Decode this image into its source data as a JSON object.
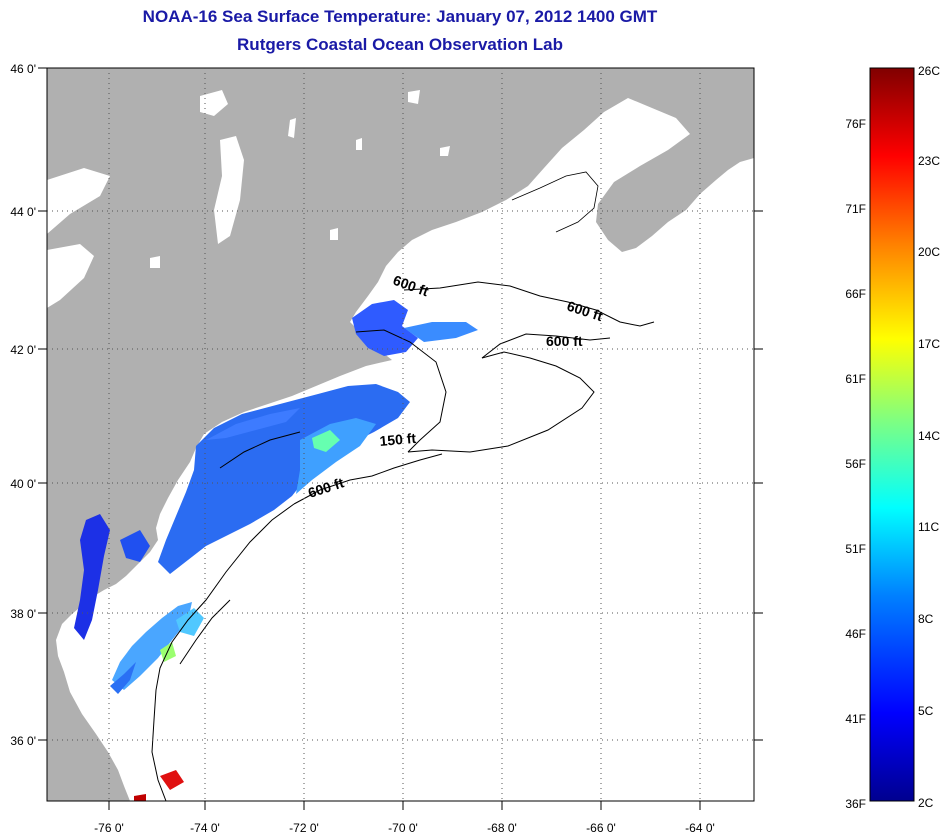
{
  "title": "NOAA-16 Sea Surface Temperature:  January 07, 2012 1400 GMT",
  "subtitle": "Rutgers Coastal Ocean Observation Lab",
  "map": {
    "lon_range": [
      -77,
      -63
    ],
    "lat_range": [
      35,
      46
    ],
    "lon_ticks": [
      "-76 0'",
      "-74 0'",
      "-72 0'",
      "-70 0'",
      "-68 0'",
      "-66 0'",
      "-64 0'"
    ],
    "lat_ticks": [
      "46 0'",
      "44 0'",
      "42 0'",
      "40 0'",
      "38 0'",
      "36 0'"
    ],
    "land_color": "#b0b0b0",
    "grid": "dotted",
    "contour_labels": [
      "600 ft",
      "600 ft",
      "600 ft",
      "150 ft",
      "600 ft"
    ]
  },
  "colorbar": {
    "fahrenheit_labels": [
      "76F",
      "71F",
      "66F",
      "61F",
      "56F",
      "51F",
      "46F",
      "41F",
      "36F"
    ],
    "celsius_labels": [
      "26C",
      "23C",
      "20C",
      "17C",
      "14C",
      "11C",
      "8C",
      "5C",
      "2C"
    ],
    "colors": [
      "#00008f",
      "#0000ff",
      "#0080ff",
      "#00ffff",
      "#80ff80",
      "#ffff00",
      "#ff8000",
      "#ff0000",
      "#800000"
    ]
  }
}
